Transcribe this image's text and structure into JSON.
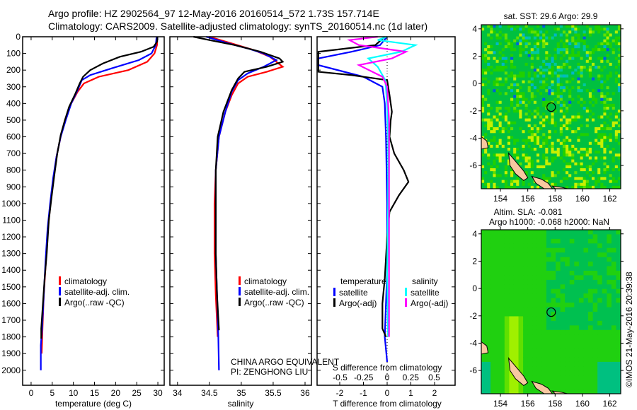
{
  "title_line1": "Argo profile: HZ 2902564_97 12-May-2016 20160514_572 1.73S 157.714E",
  "title_line2": "Climatology: CARS2009. Satellite-adjusted climatology: synTS_20160514.nc (1d later)",
  "colors": {
    "climatology": "#ff0000",
    "satellite": "#0000ff",
    "argo": "#000000",
    "sal_satellite": "#00ffff",
    "sal_argo": "#ff00ff"
  },
  "chart_data": [
    {
      "type": "line",
      "name": "temperature-profile",
      "xlabel": "temperature (deg C)",
      "xlim": [
        -2,
        31.5
      ],
      "ylim": [
        2090,
        0
      ],
      "xticks": [
        "0",
        "5",
        "10",
        "15",
        "20",
        "25",
        "30"
      ],
      "yticks": [
        "0",
        "100",
        "200",
        "300",
        "400",
        "500",
        "600",
        "700",
        "800",
        "900",
        "1000",
        "1100",
        "1200",
        "1300",
        "1400",
        "1500",
        "1600",
        "1700",
        "1800",
        "1900",
        "2000"
      ],
      "legend": [
        "climatology",
        "satellite-adj. clim.",
        "Argo(..raw -QC)"
      ],
      "series": [
        {
          "name": "climatology",
          "color": "#ff0000",
          "points": [
            [
              29.9,
              0
            ],
            [
              29.8,
              50
            ],
            [
              29.2,
              100
            ],
            [
              27.5,
              150
            ],
            [
              23,
              200
            ],
            [
              16,
              240
            ],
            [
              12.5,
              280
            ],
            [
              11,
              330
            ],
            [
              9.5,
              400
            ],
            [
              8,
              500
            ],
            [
              7,
              600
            ],
            [
              6,
              720
            ],
            [
              5.3,
              850
            ],
            [
              4.6,
              1000
            ],
            [
              4,
              1150
            ],
            [
              3.5,
              1350
            ],
            [
              3,
              1550
            ],
            [
              2.7,
              1750
            ],
            [
              2.5,
              1900
            ]
          ]
        },
        {
          "name": "satellite-adj. clim.",
          "color": "#0000ff",
          "points": [
            [
              29.7,
              0
            ],
            [
              29.5,
              50
            ],
            [
              28.5,
              100
            ],
            [
              25.5,
              140
            ],
            [
              19,
              190
            ],
            [
              14,
              230
            ],
            [
              12,
              260
            ],
            [
              11,
              320
            ],
            [
              9.5,
              400
            ],
            [
              8.2,
              500
            ],
            [
              7,
              600
            ],
            [
              6,
              720
            ],
            [
              5.2,
              850
            ],
            [
              4.5,
              1000
            ],
            [
              3.9,
              1150
            ],
            [
              3.4,
              1350
            ],
            [
              3,
              1550
            ],
            [
              2.6,
              1750
            ],
            [
              2.3,
              1850
            ],
            [
              2.3,
              2000
            ]
          ]
        },
        {
          "name": "Argo(..raw -QC)",
          "color": "#000000",
          "points": [
            [
              29.9,
              0
            ],
            [
              29.8,
              30
            ],
            [
              29,
              60
            ],
            [
              26,
              90
            ],
            [
              21,
              120
            ],
            [
              17,
              160
            ],
            [
              14,
              200
            ],
            [
              12.3,
              240
            ],
            [
              11.5,
              280
            ],
            [
              10.5,
              340
            ],
            [
              9,
              420
            ],
            [
              8,
              500
            ],
            [
              7,
              590
            ],
            [
              6.2,
              700
            ],
            [
              5.5,
              830
            ],
            [
              4.8,
              970
            ],
            [
              4.2,
              1100
            ],
            [
              3.7,
              1300
            ],
            [
              3.2,
              1450
            ],
            [
              2.8,
              1600
            ],
            [
              2.4,
              1750
            ],
            [
              2.4,
              1810
            ]
          ]
        }
      ]
    },
    {
      "type": "line",
      "name": "salinity-profile",
      "xlabel": "salinity",
      "xlim": [
        33.88,
        36.1
      ],
      "ylim": [
        2090,
        0
      ],
      "xticks": [
        "34",
        "34.5",
        "35",
        "35.5",
        "36"
      ],
      "legend": [
        "climatology",
        "satellite-adj. clim.",
        "Argo(..raw -QC)"
      ],
      "annotation": [
        "CHINA ARGO EQUIVALENT",
        "PI: ZENGHONG LIU"
      ],
      "series": [
        {
          "name": "climatology",
          "color": "#ff0000",
          "points": [
            [
              34.5,
              0
            ],
            [
              34.85,
              40
            ],
            [
              35.2,
              80
            ],
            [
              35.45,
              120
            ],
            [
              35.65,
              180
            ],
            [
              35.4,
              210
            ],
            [
              35.1,
              240
            ],
            [
              34.95,
              280
            ],
            [
              34.85,
              350
            ],
            [
              34.75,
              450
            ],
            [
              34.65,
              600
            ],
            [
              34.6,
              800
            ],
            [
              34.58,
              1000
            ],
            [
              34.58,
              1300
            ],
            [
              34.6,
              1550
            ],
            [
              34.63,
              1800
            ]
          ]
        },
        {
          "name": "satellite-adj. clim.",
          "color": "#0000ff",
          "points": [
            [
              34.45,
              0
            ],
            [
              34.8,
              40
            ],
            [
              35.1,
              70
            ],
            [
              35.35,
              100
            ],
            [
              35.55,
              140
            ],
            [
              35.35,
              180
            ],
            [
              35.1,
              220
            ],
            [
              34.95,
              260
            ],
            [
              34.85,
              330
            ],
            [
              34.75,
              450
            ],
            [
              34.65,
              600
            ],
            [
              34.6,
              800
            ],
            [
              34.6,
              1000
            ],
            [
              34.6,
              1300
            ],
            [
              34.62,
              1550
            ],
            [
              34.64,
              1800
            ],
            [
              34.65,
              2000
            ]
          ]
        },
        {
          "name": "Argo(..raw -QC)",
          "color": "#000000",
          "points": [
            [
              34.25,
              0
            ],
            [
              34.5,
              20
            ],
            [
              34.9,
              50
            ],
            [
              35.3,
              90
            ],
            [
              35.6,
              130
            ],
            [
              35.65,
              150
            ],
            [
              35.4,
              180
            ],
            [
              35.05,
              210
            ],
            [
              34.95,
              250
            ],
            [
              34.85,
              320
            ],
            [
              34.72,
              450
            ],
            [
              34.63,
              600
            ],
            [
              34.6,
              800
            ],
            [
              34.6,
              1000
            ],
            [
              34.6,
              1300
            ],
            [
              34.62,
              1550
            ],
            [
              34.65,
              1760
            ]
          ]
        }
      ]
    },
    {
      "type": "line",
      "name": "difference-profile",
      "xlabel": "T difference from climatology",
      "xlabel2": "S difference from climatology",
      "xlim": [
        -2.9,
        2.9
      ],
      "ylim": [
        2090,
        0
      ],
      "xticks": [
        "-2",
        "-1",
        "0",
        "1",
        "2"
      ],
      "xticks2": [
        "-0.5",
        "-0.25",
        "0",
        "0.25",
        "0.5"
      ],
      "legend_temperature": {
        "title": "temperature",
        "items": [
          "satellite",
          "Argo(-adj)"
        ]
      },
      "legend_salinity": {
        "title": "salinity",
        "items": [
          "satellite",
          "Argo(-adj)"
        ]
      },
      "series": [
        {
          "name": "T satellite",
          "color": "#0000ff",
          "points": [
            [
              0,
              0
            ],
            [
              -0.3,
              50
            ],
            [
              -1.5,
              90
            ],
            [
              -2.9,
              130
            ],
            [
              -2.9,
              170
            ],
            [
              -1,
              240
            ],
            [
              -0.2,
              300
            ],
            [
              -0.1,
              400
            ],
            [
              -0.05,
              600
            ],
            [
              0,
              1000
            ],
            [
              0,
              1400
            ],
            [
              -0.1,
              1800
            ],
            [
              0,
              1950
            ]
          ]
        },
        {
          "name": "T Argo(-adj)",
          "color": "#000000",
          "points": [
            [
              -0.1,
              0
            ],
            [
              -0.5,
              50
            ],
            [
              -2.9,
              90
            ],
            [
              -2.9,
              210
            ],
            [
              -1.5,
              230
            ],
            [
              0,
              260
            ],
            [
              0.1,
              350
            ],
            [
              0.15,
              400
            ],
            [
              0.2,
              450
            ],
            [
              0.15,
              500
            ],
            [
              0.1,
              600
            ],
            [
              0.3,
              700
            ],
            [
              0.7,
              800
            ],
            [
              0.9,
              870
            ],
            [
              0.5,
              950
            ],
            [
              0.1,
              1050
            ],
            [
              0,
              1200
            ],
            [
              -0.1,
              1450
            ],
            [
              -0.2,
              1600
            ],
            [
              -0.2,
              1750
            ],
            [
              -0.05,
              1800
            ]
          ]
        },
        {
          "name": "S satellite",
          "color": "#00ffff",
          "points": [
            [
              0,
              0
            ],
            [
              -0.1,
              20
            ],
            [
              0.3,
              50
            ],
            [
              0.15,
              90
            ],
            [
              -0.2,
              130
            ],
            [
              -0.1,
              180
            ],
            [
              -0.02,
              260
            ],
            [
              0,
              400
            ],
            [
              0.01,
              600
            ],
            [
              0.01,
              1000
            ],
            [
              0,
              1400
            ],
            [
              0.01,
              1800
            ]
          ]
        },
        {
          "name": "S Argo(-adj)",
          "color": "#ff00ff",
          "points": [
            [
              -0.1,
              0
            ],
            [
              -0.4,
              20
            ],
            [
              -0.3,
              50
            ],
            [
              0.2,
              90
            ],
            [
              0.05,
              130
            ],
            [
              -0.3,
              170
            ],
            [
              -0.05,
              240
            ],
            [
              0,
              300
            ],
            [
              0.02,
              500
            ],
            [
              0.02,
              1000
            ],
            [
              0.02,
              1400
            ],
            [
              0.02,
              1800
            ]
          ]
        }
      ]
    },
    {
      "type": "heatmap",
      "name": "sst-map",
      "title": "sat. SST: 29.6 Argo: 29.9",
      "xlim": [
        152.6,
        162.8
      ],
      "ylim": [
        -7.7,
        4.3
      ],
      "xticks": [
        "154",
        "156",
        "158",
        "160",
        "162"
      ],
      "yticks": [
        "4",
        "2",
        "0",
        "-2",
        "-4",
        "-6"
      ],
      "argo_position": [
        157.714,
        -1.73
      ]
    },
    {
      "type": "heatmap",
      "name": "sla-map",
      "title_line1": "Altim. SLA: -0.081",
      "title_line2": "Argo h1000: -0.068 h2000: NaN",
      "xlim": [
        152.6,
        162.8
      ],
      "ylim": [
        -7.7,
        4.3
      ],
      "xticks": [
        "154",
        "156",
        "158",
        "160",
        "162"
      ],
      "yticks": [
        "4",
        "2",
        "0",
        "-2",
        "-4",
        "-6"
      ],
      "argo_position": [
        157.714,
        -1.73
      ]
    }
  ],
  "credit": "©IMOS 21-May-2016 20:39:38"
}
